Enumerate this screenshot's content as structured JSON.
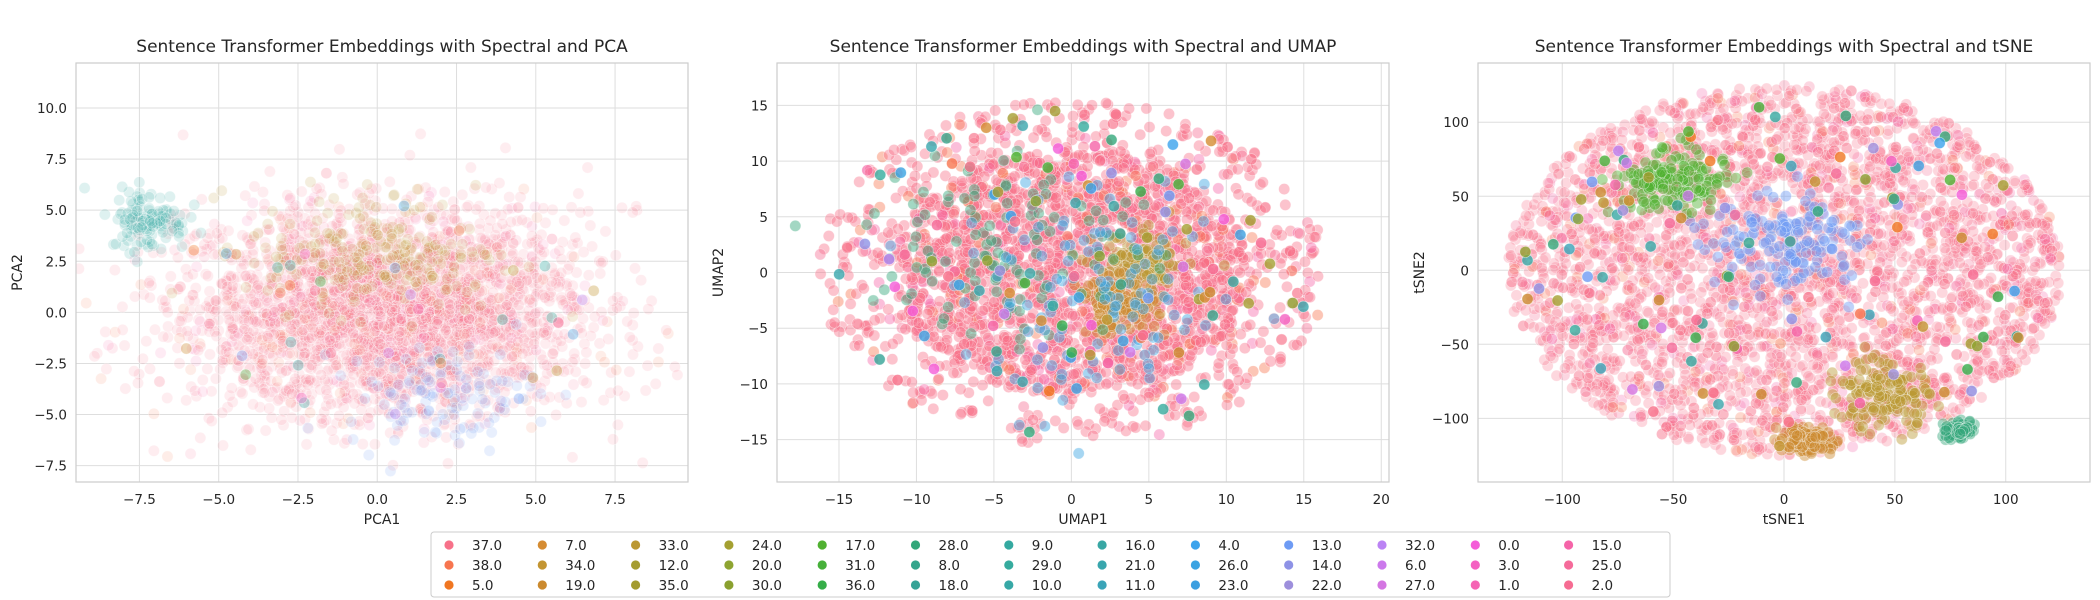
{
  "chart_data": [
    {
      "type": "scatter",
      "title": "Sentence Transformer Embeddings with Spectral and PCA",
      "xlabel": "PCA1",
      "ylabel": "PCA2",
      "xlim": [
        -9.5,
        9.8
      ],
      "ylim": [
        -8.3,
        12.2
      ],
      "xticks": [
        -7.5,
        -5.0,
        -2.5,
        0.0,
        2.5,
        5.0,
        7.5
      ],
      "xtick_labels": [
        "−7.5",
        "−5.0",
        "−2.5",
        "0.0",
        "2.5",
        "5.0",
        "7.5"
      ],
      "yticks": [
        -7.5,
        -5.0,
        -2.5,
        0.0,
        2.5,
        5.0,
        7.5,
        10.0
      ],
      "ytick_labels": [
        "−7.5",
        "−5.0",
        "−2.5",
        "0.0",
        "2.5",
        "5.0",
        "7.5",
        "10.0"
      ],
      "grid": true,
      "cloud": {
        "shape": "ellipse",
        "center": [
          0.2,
          0.0
        ],
        "radius": [
          7.6,
          5.8
        ],
        "point_opacity": 0.13,
        "dominant_label": "37.0"
      },
      "highlights": [
        {
          "label": "33.0",
          "center": [
            -0.5,
            3.2
          ],
          "spread": [
            3.6,
            3.0
          ]
        },
        {
          "label": "34.0",
          "center": [
            0.5,
            2.5
          ],
          "spread": [
            4.0,
            2.5
          ]
        },
        {
          "label": "9.0",
          "center": [
            -7.2,
            4.5
          ],
          "spread": [
            1.2,
            1.5
          ]
        },
        {
          "label": "13.0",
          "center": [
            2.0,
            -4.0
          ],
          "spread": [
            3.0,
            2.5
          ]
        }
      ]
    },
    {
      "type": "scatter",
      "title": "Sentence Transformer Embeddings with Spectral and UMAP",
      "xlabel": "UMAP1",
      "ylabel": "UMAP2",
      "xlim": [
        -19.0,
        20.5
      ],
      "ylim": [
        -18.8,
        18.8
      ],
      "xticks": [
        -15,
        -10,
        -5,
        0,
        5,
        10,
        15,
        20
      ],
      "xtick_labels": [
        "−15",
        "−10",
        "−5",
        "0",
        "5",
        "10",
        "15",
        "20"
      ],
      "yticks": [
        -15,
        -10,
        -5,
        0,
        5,
        10,
        15
      ],
      "ytick_labels": [
        "−15",
        "−10",
        "−5",
        "0",
        "5",
        "10",
        "15"
      ],
      "grid": true,
      "cloud": {
        "shape": "ellipse",
        "center": [
          0.0,
          0.0
        ],
        "radius": [
          16.5,
          15.5
        ],
        "point_opacity": 0.42,
        "dominant_label": "37.0"
      },
      "highlights": [
        {
          "label": "33.0",
          "center": [
            4.5,
            0.5
          ],
          "spread": [
            3.0,
            3.0
          ]
        },
        {
          "label": "19.0",
          "center": [
            3.0,
            -3.0
          ],
          "spread": [
            2.5,
            2.5
          ]
        },
        {
          "label": "28.0",
          "center": [
            -4.0,
            3.0
          ],
          "spread": [
            9.0,
            9.0
          ]
        },
        {
          "label": "26.0",
          "center": [
            2.0,
            -3.0
          ],
          "spread": [
            9.0,
            9.0
          ]
        }
      ]
    },
    {
      "type": "scatter",
      "title": "Sentence Transformer Embeddings with Spectral and tSNE",
      "xlabel": "tSNE1",
      "ylabel": "tSNE2",
      "xlim": [
        -138,
        138
      ],
      "ylim": [
        -143,
        140
      ],
      "xticks": [
        -100,
        -50,
        0,
        50,
        100
      ],
      "xtick_labels": [
        "−100",
        "−50",
        "0",
        "50",
        "100"
      ],
      "yticks": [
        -100,
        -50,
        0,
        50,
        100
      ],
      "ytick_labels": [
        "−100",
        "−50",
        "0",
        "50",
        "100"
      ],
      "grid": true,
      "cloud": {
        "shape": "ellipse",
        "center": [
          0.0,
          0.0
        ],
        "radius": [
          125,
          125
        ],
        "point_opacity": 0.28,
        "dominant_label": "37.0"
      },
      "highlights": [
        {
          "label": "33.0",
          "center": [
            45,
            -85
          ],
          "spread": [
            22,
            22
          ]
        },
        {
          "label": "19.0",
          "center": [
            10,
            -115
          ],
          "spread": [
            10,
            7
          ]
        },
        {
          "label": "28.0",
          "center": [
            78,
            -108
          ],
          "spread": [
            6,
            5
          ]
        },
        {
          "label": "13.0",
          "center": [
            0,
            20
          ],
          "spread": [
            35,
            35
          ]
        },
        {
          "label": "17.0",
          "center": [
            -50,
            60
          ],
          "spread": [
            25,
            20
          ]
        }
      ]
    }
  ],
  "legend": {
    "placement": "bottom-center",
    "columns": 13,
    "items": [
      {
        "label": "37.0",
        "color": "#f77189"
      },
      {
        "label": "38.0",
        "color": "#f7754f"
      },
      {
        "label": "5.0",
        "color": "#f07621"
      },
      {
        "label": "7.0",
        "color": "#d58c32"
      },
      {
        "label": "34.0",
        "color": "#c39532"
      },
      {
        "label": "19.0",
        "color": "#cb8a2e"
      },
      {
        "label": "33.0",
        "color": "#bb9832"
      },
      {
        "label": "12.0",
        "color": "#a59d31"
      },
      {
        "label": "35.0",
        "color": "#a39b2f"
      },
      {
        "label": "24.0",
        "color": "#a4a031"
      },
      {
        "label": "20.0",
        "color": "#8ea431"
      },
      {
        "label": "30.0",
        "color": "#8aa02f"
      },
      {
        "label": "17.0",
        "color": "#50b131"
      },
      {
        "label": "31.0",
        "color": "#46b03a"
      },
      {
        "label": "36.0",
        "color": "#35ad48"
      },
      {
        "label": "28.0",
        "color": "#33a77a"
      },
      {
        "label": "8.0",
        "color": "#34a58c"
      },
      {
        "label": "18.0",
        "color": "#35a396"
      },
      {
        "label": "9.0",
        "color": "#34a9a0"
      },
      {
        "label": "29.0",
        "color": "#36ab9e"
      },
      {
        "label": "10.0",
        "color": "#37a8a6"
      },
      {
        "label": "16.0",
        "color": "#38a7a4"
      },
      {
        "label": "21.0",
        "color": "#38a6ad"
      },
      {
        "label": "11.0",
        "color": "#3aa4b8"
      },
      {
        "label": "4.0",
        "color": "#3ba3ec"
      },
      {
        "label": "26.0",
        "color": "#3aa3e2"
      },
      {
        "label": "23.0",
        "color": "#3c9fe0"
      },
      {
        "label": "13.0",
        "color": "#6e9bf4"
      },
      {
        "label": "14.0",
        "color": "#8e92e6"
      },
      {
        "label": "22.0",
        "color": "#9d8fdc"
      },
      {
        "label": "32.0",
        "color": "#bb83f4"
      },
      {
        "label": "6.0",
        "color": "#cc79ec"
      },
      {
        "label": "27.0",
        "color": "#d476e2"
      },
      {
        "label": "0.0",
        "color": "#f45cd8"
      },
      {
        "label": "3.0",
        "color": "#f461c2"
      },
      {
        "label": "1.0",
        "color": "#f564b4"
      },
      {
        "label": "15.0",
        "color": "#f564a8"
      },
      {
        "label": "25.0",
        "color": "#f56b9a"
      },
      {
        "label": "2.0",
        "color": "#f66c92"
      }
    ]
  }
}
